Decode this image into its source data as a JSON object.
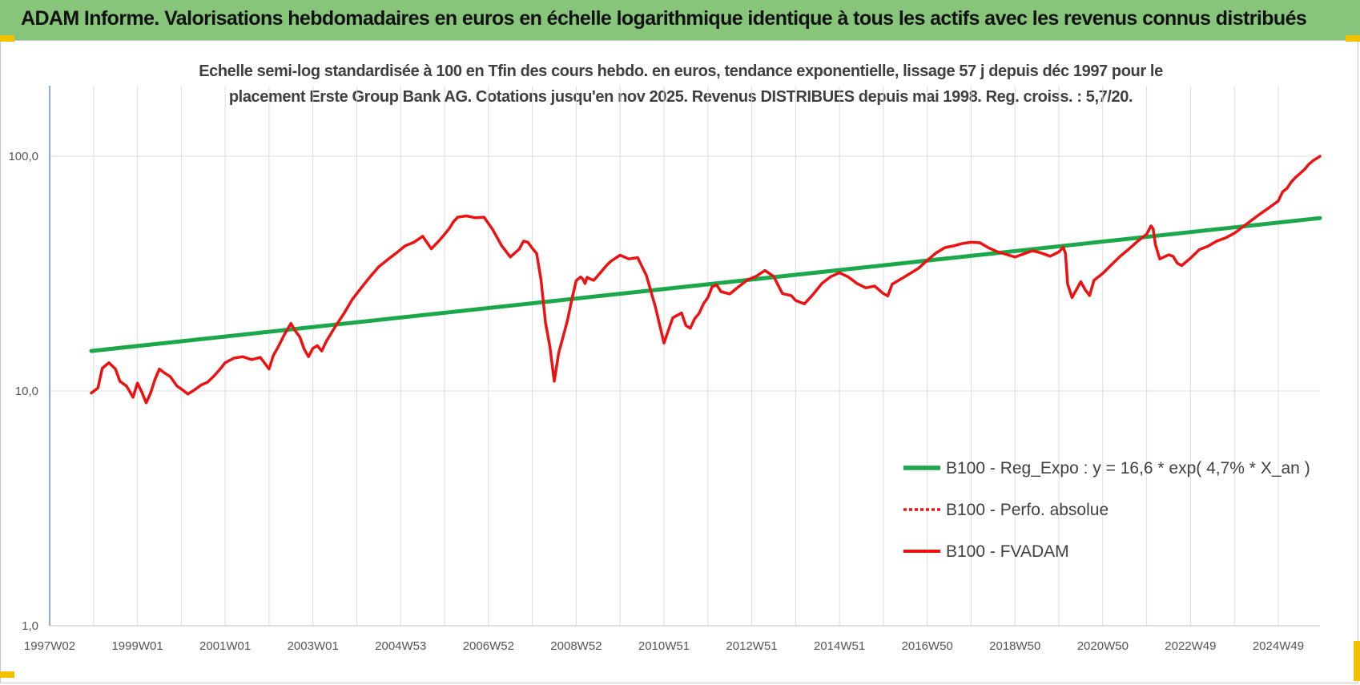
{
  "page": {
    "title": "ADAM Informe. Valorisations hebdomadaires en euros en échelle logarithmique identique à tous les actifs avec les revenus connus distribués"
  },
  "colors": {
    "title_bar": "#86c57a",
    "regression": "#1aa84a",
    "fvadam": "#ee1111",
    "perfo": "#ee1111",
    "accent_corner": "#f2c200"
  },
  "chart_data": {
    "type": "line",
    "title_line1": "Echelle semi-log standardisée à 100 en Tfin des cours hebdo. en euros, tendance exponentielle, lissage 57 j depuis déc 1997 pour le",
    "title_line2": "placement Erste Group Bank AG. Cotations jusqu'en nov 2025. Revenus DISTRIBUES depuis mai 1998. Reg. croiss. : 5,7/20.",
    "y_scale": "log",
    "ylim": [
      1,
      200
    ],
    "y_ticks": [
      {
        "v": 1,
        "label": "1,0"
      },
      {
        "v": 10,
        "label": "10,0"
      },
      {
        "v": 100,
        "label": "100,0"
      }
    ],
    "xlim": [
      1997.0,
      2025.95
    ],
    "x_ticks": [
      {
        "v": 1997.0,
        "label": "1997W02"
      },
      {
        "v": 1999.0,
        "label": "1999W01"
      },
      {
        "v": 2001.0,
        "label": "2001W01"
      },
      {
        "v": 2003.0,
        "label": "2003W01"
      },
      {
        "v": 2005.0,
        "label": "2004W53"
      },
      {
        "v": 2007.0,
        "label": "2006W52"
      },
      {
        "v": 2009.0,
        "label": "2008W52"
      },
      {
        "v": 2011.0,
        "label": "2010W51"
      },
      {
        "v": 2013.0,
        "label": "2012W51"
      },
      {
        "v": 2015.0,
        "label": "2014W51"
      },
      {
        "v": 2017.0,
        "label": "2016W50"
      },
      {
        "v": 2019.0,
        "label": "2018W50"
      },
      {
        "v": 2021.0,
        "label": "2020W50"
      },
      {
        "v": 2023.0,
        "label": "2022W49"
      },
      {
        "v": 2025.0,
        "label": "2024W49"
      }
    ],
    "grid": "vertical and horizontal",
    "legend_position": "bottom-right",
    "series": [
      {
        "name": "B100 - Reg_Expo : y = 16,6 * exp( 4,7% *  X_an )",
        "style": "solid",
        "x": [
          1997.95,
          2025.95
        ],
        "y": [
          14.8,
          54.5
        ]
      },
      {
        "name": "B100 - Perfo. absolue",
        "style": "dotted",
        "x": [],
        "y": []
      },
      {
        "name": "B100 - FVADAM",
        "style": "solid",
        "x": [
          1997.95,
          1998.1,
          1998.2,
          1998.35,
          1998.5,
          1998.6,
          1998.75,
          1998.9,
          1999.0,
          1999.1,
          1999.2,
          1999.3,
          1999.4,
          1999.5,
          1999.6,
          1999.75,
          1999.9,
          2000.0,
          2000.15,
          2000.3,
          2000.45,
          2000.6,
          2000.75,
          2000.9,
          2001.0,
          2001.2,
          2001.4,
          2001.6,
          2001.8,
          2002.0,
          2002.1,
          2002.2,
          2002.35,
          2002.5,
          2002.6,
          2002.7,
          2002.8,
          2002.9,
          2003.0,
          2003.1,
          2003.2,
          2003.3,
          2003.5,
          2003.7,
          2003.9,
          2004.1,
          2004.3,
          2004.5,
          2004.7,
          2004.9,
          2005.1,
          2005.3,
          2005.5,
          2005.7,
          2005.9,
          2006.0,
          2006.1,
          2006.2,
          2006.3,
          2006.5,
          2006.7,
          2006.9,
          2007.1,
          2007.3,
          2007.5,
          2007.7,
          2007.8,
          2007.9,
          2008.0,
          2008.1,
          2008.2,
          2008.3,
          2008.4,
          2008.5,
          2008.6,
          2008.7,
          2008.8,
          2008.9,
          2009.0,
          2009.1,
          2009.15,
          2009.2,
          2009.25,
          2009.3,
          2009.4,
          2009.5,
          2009.6,
          2009.7,
          2009.8,
          2010.0,
          2010.2,
          2010.4,
          2010.6,
          2010.8,
          2011.0,
          2011.2,
          2011.4,
          2011.5,
          2011.6,
          2011.7,
          2011.8,
          2011.9,
          2012.0,
          2012.1,
          2012.2,
          2012.3,
          2012.5,
          2012.7,
          2012.9,
          2013.1,
          2013.3,
          2013.5,
          2013.7,
          2013.9,
          2014.0,
          2014.2,
          2014.4,
          2014.6,
          2014.8,
          2015.0,
          2015.2,
          2015.4,
          2015.6,
          2015.8,
          2016.0,
          2016.1,
          2016.2,
          2016.4,
          2016.6,
          2016.8,
          2017.0,
          2017.2,
          2017.4,
          2017.6,
          2017.8,
          2018.0,
          2018.2,
          2018.4,
          2018.6,
          2018.8,
          2019.0,
          2019.2,
          2019.4,
          2019.6,
          2019.8,
          2020.0,
          2020.1,
          2020.15,
          2020.2,
          2020.3,
          2020.4,
          2020.5,
          2020.6,
          2020.7,
          2020.8,
          2021.0,
          2021.2,
          2021.4,
          2021.6,
          2021.8,
          2022.0,
          2022.1,
          2022.15,
          2022.2,
          2022.3,
          2022.5,
          2022.6,
          2022.7,
          2022.8,
          2023.0,
          2023.2,
          2023.4,
          2023.6,
          2023.8,
          2024.0,
          2024.2,
          2024.4,
          2024.6,
          2024.8,
          2025.0,
          2025.1,
          2025.2,
          2025.3,
          2025.4,
          2025.5,
          2025.6,
          2025.7,
          2025.8,
          2025.9,
          2025.95
        ],
        "y": [
          9.8,
          10.3,
          12.5,
          13.2,
          12.4,
          11.0,
          10.5,
          9.4,
          10.8,
          9.9,
          8.9,
          9.8,
          11.2,
          12.4,
          12.0,
          11.5,
          10.5,
          10.2,
          9.7,
          10.1,
          10.6,
          10.9,
          11.6,
          12.5,
          13.2,
          13.8,
          14.0,
          13.6,
          13.9,
          12.4,
          14.2,
          15.3,
          17.4,
          19.4,
          18.0,
          17.0,
          15.1,
          14.0,
          15.2,
          15.6,
          14.8,
          16.2,
          18.7,
          21.3,
          24.6,
          27.5,
          30.6,
          33.8,
          36.2,
          38.7,
          41.5,
          43.0,
          45.6,
          40.3,
          44.2,
          46.5,
          49.0,
          52.5,
          55.0,
          55.7,
          54.7,
          55.0,
          48.6,
          41.6,
          37.2,
          40.2,
          43.5,
          43.0,
          40.5,
          38.5,
          29.5,
          19.5,
          15.5,
          11.0,
          14.5,
          17.0,
          20.0,
          24.5,
          29.5,
          30.6,
          30.0,
          28.7,
          30.5,
          30.1,
          29.6,
          31.1,
          32.7,
          34.4,
          35.8,
          37.9,
          36.5,
          37.0,
          31.0,
          23.0,
          16.0,
          20.5,
          21.5,
          19.0,
          18.5,
          20.3,
          21.4,
          23.5,
          25.0,
          27.8,
          28.3,
          26.5,
          25.9,
          27.8,
          29.7,
          30.8,
          32.6,
          30.8,
          26.0,
          25.5,
          24.3,
          23.5,
          25.8,
          28.7,
          30.7,
          31.9,
          30.6,
          28.7,
          27.5,
          28.0,
          26.0,
          25.4,
          28.5,
          30.0,
          31.6,
          33.3,
          36.0,
          38.7,
          40.8,
          41.5,
          42.5,
          43.0,
          42.8,
          40.7,
          39.2,
          38.2,
          37.2,
          38.4,
          39.6,
          38.7,
          37.5,
          39.1,
          41.0,
          38.5,
          28.5,
          25.0,
          27.0,
          29.2,
          27.0,
          25.5,
          29.6,
          31.7,
          34.5,
          37.5,
          40.3,
          43.5,
          46.5,
          50.5,
          49.0,
          42.0,
          36.5,
          38.0,
          37.5,
          35.0,
          34.2,
          36.8,
          40.0,
          41.4,
          43.5,
          44.9,
          47.0,
          50.1,
          53.5,
          57.0,
          60.5,
          64.5,
          70.5,
          73.0,
          77.8,
          81.5,
          84.5,
          88.0,
          92.5,
          96.0,
          98.5,
          100.0
        ]
      }
    ]
  }
}
